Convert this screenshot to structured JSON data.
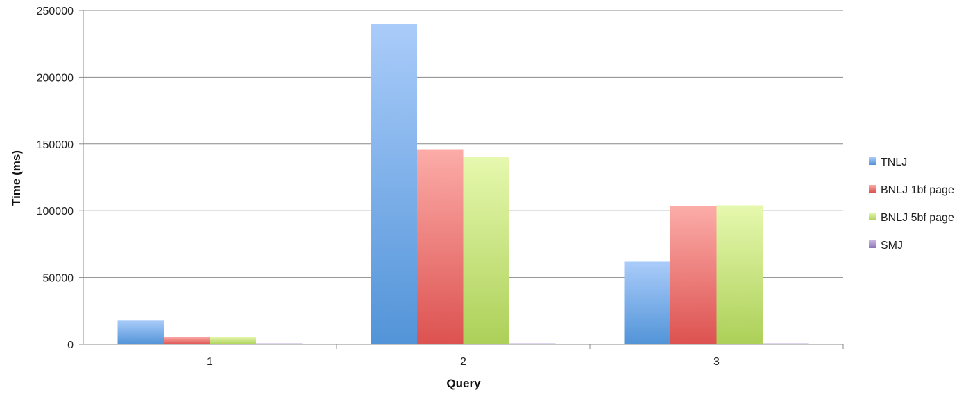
{
  "chart_data": {
    "type": "bar",
    "title": "",
    "xlabel": "Query",
    "ylabel": "Time (ms)",
    "categories": [
      "1",
      "2",
      "3"
    ],
    "ylim": [
      0,
      250000
    ],
    "yticks": [
      0,
      50000,
      100000,
      150000,
      200000,
      250000
    ],
    "ytick_labels": [
      "0",
      "50000",
      "100000",
      "150000",
      "200000",
      "250000"
    ],
    "grid": true,
    "legend_position": "right",
    "series": [
      {
        "name": "TNLJ",
        "values": [
          18000,
          240000,
          62000
        ],
        "color_light": "#aaccfa",
        "color_dark": "#5294d8"
      },
      {
        "name": "BNLJ 1bf page",
        "values": [
          5500,
          146000,
          103500
        ],
        "color_light": "#fcaca8",
        "color_dark": "#dc5250"
      },
      {
        "name": "BNLJ 5bf page",
        "values": [
          5500,
          140000,
          104000
        ],
        "color_light": "#e6f8ae",
        "color_dark": "#acd058"
      },
      {
        "name": "SMJ",
        "values": [
          500,
          500,
          500
        ],
        "color_light": "#c8b8e0",
        "color_dark": "#8e74b8"
      }
    ]
  }
}
